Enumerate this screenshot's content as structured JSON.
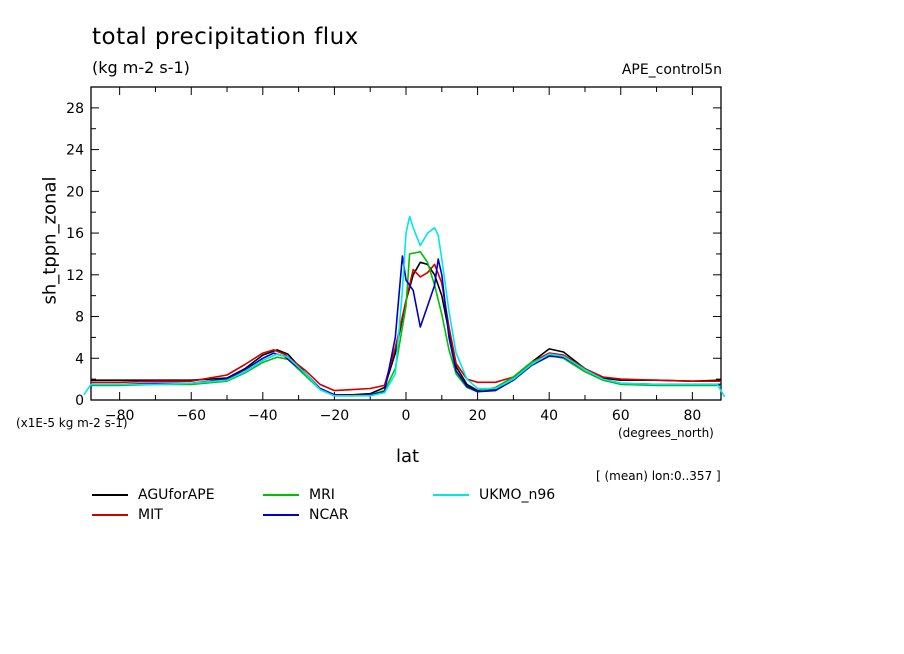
{
  "chart_data": {
    "type": "line",
    "title": "total precipitation flux",
    "units": "(kg m-2 s-1)",
    "run": "APE_control5n",
    "ylabel": "sh_tppn_zonal",
    "yscale_label": "(x1E-5 kg m-2 s-1)",
    "xlabel": "lat",
    "xunits": "(degrees_north)",
    "mean_note": "[ (mean) lon:0..357 ]",
    "xlim": [
      -88,
      88
    ],
    "ylim": [
      0,
      30
    ],
    "xticks": [
      -80,
      -60,
      -40,
      -20,
      0,
      20,
      40,
      60,
      80
    ],
    "yticks": [
      0,
      4,
      8,
      12,
      16,
      20,
      24,
      28
    ],
    "grid": false,
    "legend": "bottom",
    "series": [
      {
        "name": "AGUforAPE",
        "color": "#000000",
        "points": [
          [
            -88,
            1.9
          ],
          [
            -80,
            1.9
          ],
          [
            -70,
            1.9
          ],
          [
            -60,
            1.9
          ],
          [
            -50,
            2.1
          ],
          [
            -45,
            3.0
          ],
          [
            -40,
            4.3
          ],
          [
            -36,
            4.8
          ],
          [
            -33,
            4.4
          ],
          [
            -28,
            2.5
          ],
          [
            -24,
            1.1
          ],
          [
            -20,
            0.5
          ],
          [
            -15,
            0.5
          ],
          [
            -10,
            0.6
          ],
          [
            -6,
            1.2
          ],
          [
            -3,
            4.5
          ],
          [
            0,
            9.5
          ],
          [
            2,
            12.0
          ],
          [
            4,
            13.2
          ],
          [
            6,
            13.0
          ],
          [
            8,
            12.0
          ],
          [
            10,
            10.0
          ],
          [
            12,
            6.5
          ],
          [
            14,
            3.2
          ],
          [
            17,
            1.5
          ],
          [
            20,
            0.9
          ],
          [
            25,
            1.0
          ],
          [
            30,
            2.0
          ],
          [
            35,
            3.6
          ],
          [
            40,
            4.9
          ],
          [
            44,
            4.6
          ],
          [
            50,
            3.0
          ],
          [
            55,
            2.1
          ],
          [
            60,
            1.9
          ],
          [
            70,
            1.9
          ],
          [
            80,
            1.8
          ],
          [
            88,
            1.9
          ]
        ]
      },
      {
        "name": "MIT",
        "color": "#d00000",
        "points": [
          [
            -88,
            1.7
          ],
          [
            -80,
            1.7
          ],
          [
            -70,
            1.8
          ],
          [
            -60,
            1.8
          ],
          [
            -50,
            2.4
          ],
          [
            -45,
            3.4
          ],
          [
            -40,
            4.5
          ],
          [
            -37,
            4.8
          ],
          [
            -34,
            4.4
          ],
          [
            -28,
            2.8
          ],
          [
            -24,
            1.5
          ],
          [
            -20,
            0.9
          ],
          [
            -15,
            1.0
          ],
          [
            -10,
            1.1
          ],
          [
            -6,
            1.4
          ],
          [
            -3,
            5.0
          ],
          [
            0,
            9.5
          ],
          [
            2,
            12.5
          ],
          [
            4,
            11.8
          ],
          [
            6,
            12.2
          ],
          [
            8,
            13.0
          ],
          [
            10,
            11.2
          ],
          [
            12,
            7.0
          ],
          [
            14,
            3.5
          ],
          [
            17,
            2.0
          ],
          [
            20,
            1.7
          ],
          [
            25,
            1.7
          ],
          [
            30,
            2.2
          ],
          [
            35,
            3.6
          ],
          [
            40,
            4.5
          ],
          [
            44,
            4.3
          ],
          [
            50,
            3.0
          ],
          [
            55,
            2.2
          ],
          [
            60,
            2.0
          ],
          [
            70,
            1.9
          ],
          [
            80,
            1.8
          ],
          [
            88,
            1.8
          ]
        ]
      },
      {
        "name": "MRI",
        "color": "#00c000",
        "points": [
          [
            -88,
            1.4
          ],
          [
            -80,
            1.4
          ],
          [
            -70,
            1.5
          ],
          [
            -60,
            1.5
          ],
          [
            -50,
            1.8
          ],
          [
            -45,
            2.6
          ],
          [
            -40,
            3.6
          ],
          [
            -36,
            4.1
          ],
          [
            -33,
            3.9
          ],
          [
            -28,
            2.3
          ],
          [
            -24,
            1.0
          ],
          [
            -20,
            0.4
          ],
          [
            -15,
            0.4
          ],
          [
            -10,
            0.5
          ],
          [
            -6,
            0.9
          ],
          [
            -3,
            3.0
          ],
          [
            0,
            9.0
          ],
          [
            1,
            14.0
          ],
          [
            4,
            14.2
          ],
          [
            6,
            13.2
          ],
          [
            8,
            11.0
          ],
          [
            10,
            8.2
          ],
          [
            12,
            4.8
          ],
          [
            14,
            2.5
          ],
          [
            17,
            1.2
          ],
          [
            20,
            0.8
          ],
          [
            25,
            1.2
          ],
          [
            30,
            2.2
          ],
          [
            35,
            3.6
          ],
          [
            40,
            4.3
          ],
          [
            44,
            4.0
          ],
          [
            50,
            2.7
          ],
          [
            55,
            1.9
          ],
          [
            60,
            1.5
          ],
          [
            70,
            1.4
          ],
          [
            80,
            1.4
          ],
          [
            88,
            1.4
          ]
        ]
      },
      {
        "name": "NCAR",
        "color": "#0000cc",
        "points": [
          [
            -88,
            1.5
          ],
          [
            -80,
            1.5
          ],
          [
            -70,
            1.6
          ],
          [
            -60,
            1.6
          ],
          [
            -50,
            2.0
          ],
          [
            -45,
            2.9
          ],
          [
            -40,
            4.0
          ],
          [
            -37,
            4.5
          ],
          [
            -34,
            4.2
          ],
          [
            -28,
            2.5
          ],
          [
            -24,
            1.1
          ],
          [
            -20,
            0.5
          ],
          [
            -15,
            0.4
          ],
          [
            -10,
            0.5
          ],
          [
            -6,
            0.8
          ],
          [
            -3,
            6.0
          ],
          [
            -1,
            13.8
          ],
          [
            0,
            11.5
          ],
          [
            2,
            10.5
          ],
          [
            4,
            7.0
          ],
          [
            6,
            9.0
          ],
          [
            8,
            11.0
          ],
          [
            9,
            13.5
          ],
          [
            10,
            12.0
          ],
          [
            12,
            6.0
          ],
          [
            14,
            2.8
          ],
          [
            17,
            1.3
          ],
          [
            20,
            0.8
          ],
          [
            25,
            0.9
          ],
          [
            30,
            1.9
          ],
          [
            35,
            3.3
          ],
          [
            40,
            4.2
          ],
          [
            44,
            4.1
          ],
          [
            50,
            2.9
          ],
          [
            55,
            2.0
          ],
          [
            60,
            1.6
          ],
          [
            70,
            1.5
          ],
          [
            80,
            1.5
          ],
          [
            88,
            1.5
          ]
        ]
      },
      {
        "name": "UKMO_n96",
        "color": "#00e8e8",
        "points": [
          [
            -90,
            0.5
          ],
          [
            -88,
            1.5
          ],
          [
            -80,
            1.5
          ],
          [
            -70,
            1.5
          ],
          [
            -60,
            1.6
          ],
          [
            -50,
            1.9
          ],
          [
            -45,
            2.7
          ],
          [
            -40,
            3.8
          ],
          [
            -36,
            4.4
          ],
          [
            -33,
            4.1
          ],
          [
            -28,
            2.5
          ],
          [
            -24,
            1.0
          ],
          [
            -20,
            0.4
          ],
          [
            -15,
            0.4
          ],
          [
            -10,
            0.4
          ],
          [
            -6,
            0.7
          ],
          [
            -3,
            2.5
          ],
          [
            -1,
            10.5
          ],
          [
            0,
            16.0
          ],
          [
            1,
            17.6
          ],
          [
            2,
            16.5
          ],
          [
            4,
            14.8
          ],
          [
            6,
            16.0
          ],
          [
            8,
            16.5
          ],
          [
            9,
            15.8
          ],
          [
            10,
            13.5
          ],
          [
            12,
            8.5
          ],
          [
            14,
            4.5
          ],
          [
            17,
            2.0
          ],
          [
            20,
            1.1
          ],
          [
            25,
            1.1
          ],
          [
            30,
            2.0
          ],
          [
            35,
            3.4
          ],
          [
            40,
            4.4
          ],
          [
            44,
            4.2
          ],
          [
            50,
            2.9
          ],
          [
            55,
            2.0
          ],
          [
            60,
            1.6
          ],
          [
            70,
            1.5
          ],
          [
            80,
            1.5
          ],
          [
            87,
            1.5
          ],
          [
            89,
            0.3
          ]
        ]
      }
    ]
  }
}
